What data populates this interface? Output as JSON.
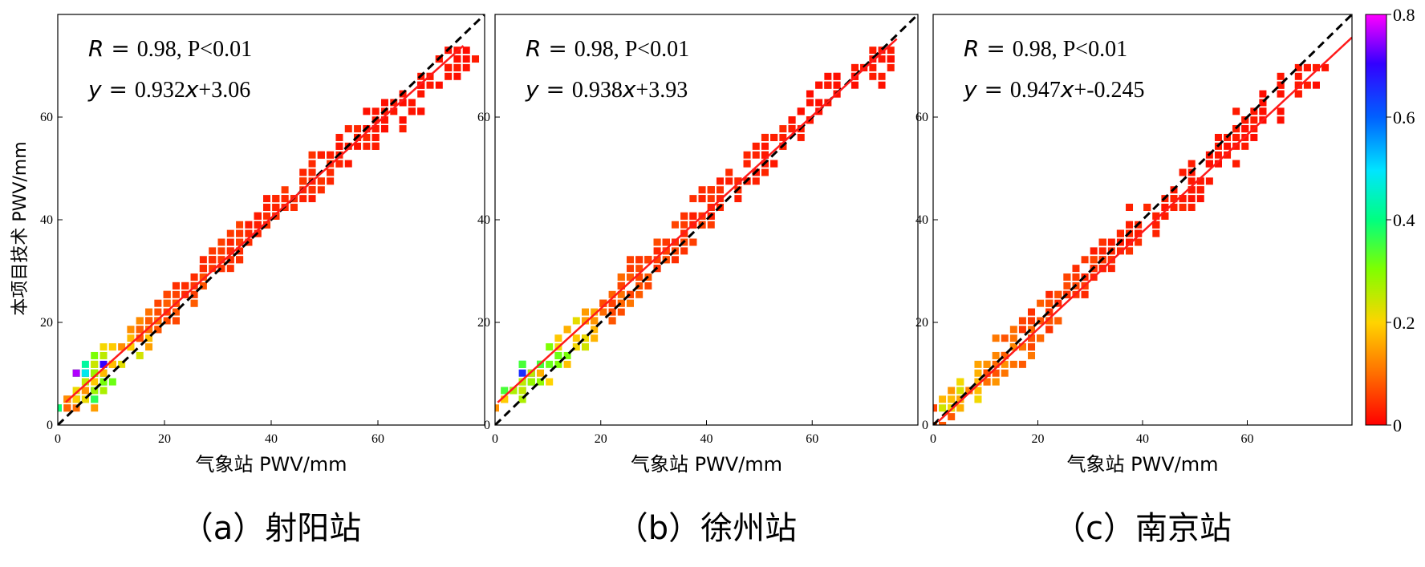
{
  "shared": {
    "ylabel": "本项目技术 PWV/mm",
    "xlabel": "气象站 PWV/mm",
    "colorbar": {
      "min": 0,
      "max": 0.8,
      "ticks": [
        "0",
        "0.2",
        "0.4",
        "0.6",
        "0.8"
      ]
    }
  },
  "chart_data": [
    {
      "type": "heatmap",
      "caption": "（a）射阳站",
      "stats_line1": ", P<0.01",
      "r_value": "0.98",
      "stats_line2": "0.932",
      "intercept_text": "+3.06",
      "xlim": [
        0,
        80
      ],
      "ylim": [
        0,
        80
      ],
      "x_ticks": [
        "0",
        "20",
        "40",
        "60"
      ],
      "y_ticks": [
        "0",
        "20",
        "40",
        "60"
      ],
      "fit": {
        "slope": 0.932,
        "intercept": 3.06,
        "x_range": [
          1.5,
          76
        ]
      },
      "identity_line": true,
      "density_points": [
        [
          2,
          4,
          0.12
        ],
        [
          3,
          6,
          0.35
        ],
        [
          4,
          8,
          0.5
        ],
        [
          5,
          9,
          0.65
        ],
        [
          6,
          10,
          0.72
        ],
        [
          4,
          5,
          0.2
        ],
        [
          6,
          7,
          0.3
        ],
        [
          7,
          9,
          0.42
        ],
        [
          8,
          12,
          0.25
        ],
        [
          9,
          11,
          0.3
        ],
        [
          10,
          13,
          0.22
        ],
        [
          12,
          14,
          0.18
        ],
        [
          14,
          16,
          0.2
        ],
        [
          15,
          18,
          0.15
        ],
        [
          17,
          19,
          0.12
        ],
        [
          18,
          20,
          0.1
        ],
        [
          20,
          22,
          0.1
        ],
        [
          22,
          24,
          0.08
        ],
        [
          24,
          26,
          0.08
        ],
        [
          25,
          28,
          0.07
        ],
        [
          28,
          30,
          0.06
        ],
        [
          30,
          32,
          0.06
        ],
        [
          32,
          34,
          0.05
        ],
        [
          34,
          36,
          0.05
        ],
        [
          36,
          38,
          0.05
        ],
        [
          38,
          40,
          0.04
        ],
        [
          40,
          42,
          0.04
        ],
        [
          42,
          44,
          0.04
        ],
        [
          45,
          46,
          0.04
        ],
        [
          48,
          48,
          0.04
        ],
        [
          50,
          50,
          0.04
        ],
        [
          52,
          52,
          0.03
        ],
        [
          55,
          55,
          0.03
        ],
        [
          58,
          57,
          0.03
        ],
        [
          60,
          59,
          0.02
        ],
        [
          63,
          61,
          0.02
        ],
        [
          66,
          63,
          0.02
        ],
        [
          70,
          68,
          0.02
        ],
        [
          73,
          70,
          0.02
        ],
        [
          75,
          72,
          0.02
        ]
      ]
    },
    {
      "type": "heatmap",
      "caption": "（b）徐州站",
      "stats_line1": ", P<0.01",
      "r_value": "0.98",
      "stats_line2": "0.938",
      "intercept_text": "+3.93",
      "xlim": [
        0,
        80
      ],
      "ylim": [
        0,
        80
      ],
      "x_ticks": [
        "0",
        "20",
        "40",
        "60"
      ],
      "y_ticks": [
        "0",
        "20",
        "40",
        "60"
      ],
      "fit": {
        "slope": 0.938,
        "intercept": 3.93,
        "x_range": [
          0.5,
          76
        ]
      },
      "identity_line": true,
      "density_points": [
        [
          2,
          5,
          0.18
        ],
        [
          3,
          7,
          0.32
        ],
        [
          4,
          8,
          0.55
        ],
        [
          5,
          9,
          0.6
        ],
        [
          6,
          8,
          0.4
        ],
        [
          7,
          10,
          0.35
        ],
        [
          8,
          11,
          0.3
        ],
        [
          10,
          12,
          0.28
        ],
        [
          12,
          14,
          0.25
        ],
        [
          14,
          16,
          0.22
        ],
        [
          16,
          18,
          0.2
        ],
        [
          18,
          20,
          0.15
        ],
        [
          20,
          22,
          0.12
        ],
        [
          22,
          24,
          0.1
        ],
        [
          24,
          26,
          0.09
        ],
        [
          26,
          28,
          0.08
        ],
        [
          28,
          30,
          0.07
        ],
        [
          30,
          32,
          0.06
        ],
        [
          32,
          34,
          0.06
        ],
        [
          34,
          36,
          0.05
        ],
        [
          36,
          38,
          0.05
        ],
        [
          38,
          40,
          0.05
        ],
        [
          40,
          42,
          0.04
        ],
        [
          42,
          44,
          0.04
        ],
        [
          45,
          47,
          0.04
        ],
        [
          48,
          50,
          0.03
        ],
        [
          50,
          52,
          0.03
        ],
        [
          53,
          55,
          0.03
        ],
        [
          56,
          58,
          0.03
        ],
        [
          60,
          62,
          0.02
        ],
        [
          63,
          65,
          0.02
        ],
        [
          66,
          67,
          0.02
        ],
        [
          70,
          69,
          0.02
        ],
        [
          73,
          71,
          0.02
        ]
      ]
    },
    {
      "type": "heatmap",
      "caption": "（c）南京站",
      "stats_line1": ", P<0.01",
      "r_value": "0.98",
      "stats_line2": "0.947",
      "intercept_text": "+-0.245",
      "xlim": [
        0,
        80
      ],
      "ylim": [
        0,
        80
      ],
      "x_ticks": [
        "0",
        "20",
        "40",
        "60"
      ],
      "y_ticks": [
        "0",
        "20",
        "40",
        "60"
      ],
      "fit": {
        "slope": 0.947,
        "intercept": -0.245,
        "x_range": [
          1,
          80
        ]
      },
      "identity_line": true,
      "density_points": [
        [
          2,
          2,
          0.1
        ],
        [
          3,
          4,
          0.2
        ],
        [
          4,
          5,
          0.25
        ],
        [
          5,
          6,
          0.22
        ],
        [
          6,
          6,
          0.2
        ],
        [
          8,
          8,
          0.18
        ],
        [
          10,
          10,
          0.15
        ],
        [
          12,
          12,
          0.12
        ],
        [
          14,
          14,
          0.1
        ],
        [
          16,
          16,
          0.1
        ],
        [
          18,
          18,
          0.09
        ],
        [
          20,
          20,
          0.08
        ],
        [
          22,
          22,
          0.07
        ],
        [
          24,
          24,
          0.06
        ],
        [
          26,
          26,
          0.06
        ],
        [
          28,
          28,
          0.05
        ],
        [
          30,
          30,
          0.05
        ],
        [
          32,
          32,
          0.04
        ],
        [
          34,
          34,
          0.04
        ],
        [
          36,
          36,
          0.04
        ],
        [
          38,
          38,
          0.03
        ],
        [
          40,
          40,
          0.03
        ],
        [
          43,
          42,
          0.03
        ],
        [
          46,
          44,
          0.03
        ],
        [
          49,
          47,
          0.02
        ],
        [
          52,
          50,
          0.02
        ],
        [
          55,
          53,
          0.02
        ],
        [
          58,
          56,
          0.02
        ],
        [
          61,
          59,
          0.02
        ],
        [
          64,
          62,
          0.02
        ],
        [
          68,
          65,
          0.02
        ],
        [
          72,
          68,
          0.02
        ]
      ]
    }
  ]
}
